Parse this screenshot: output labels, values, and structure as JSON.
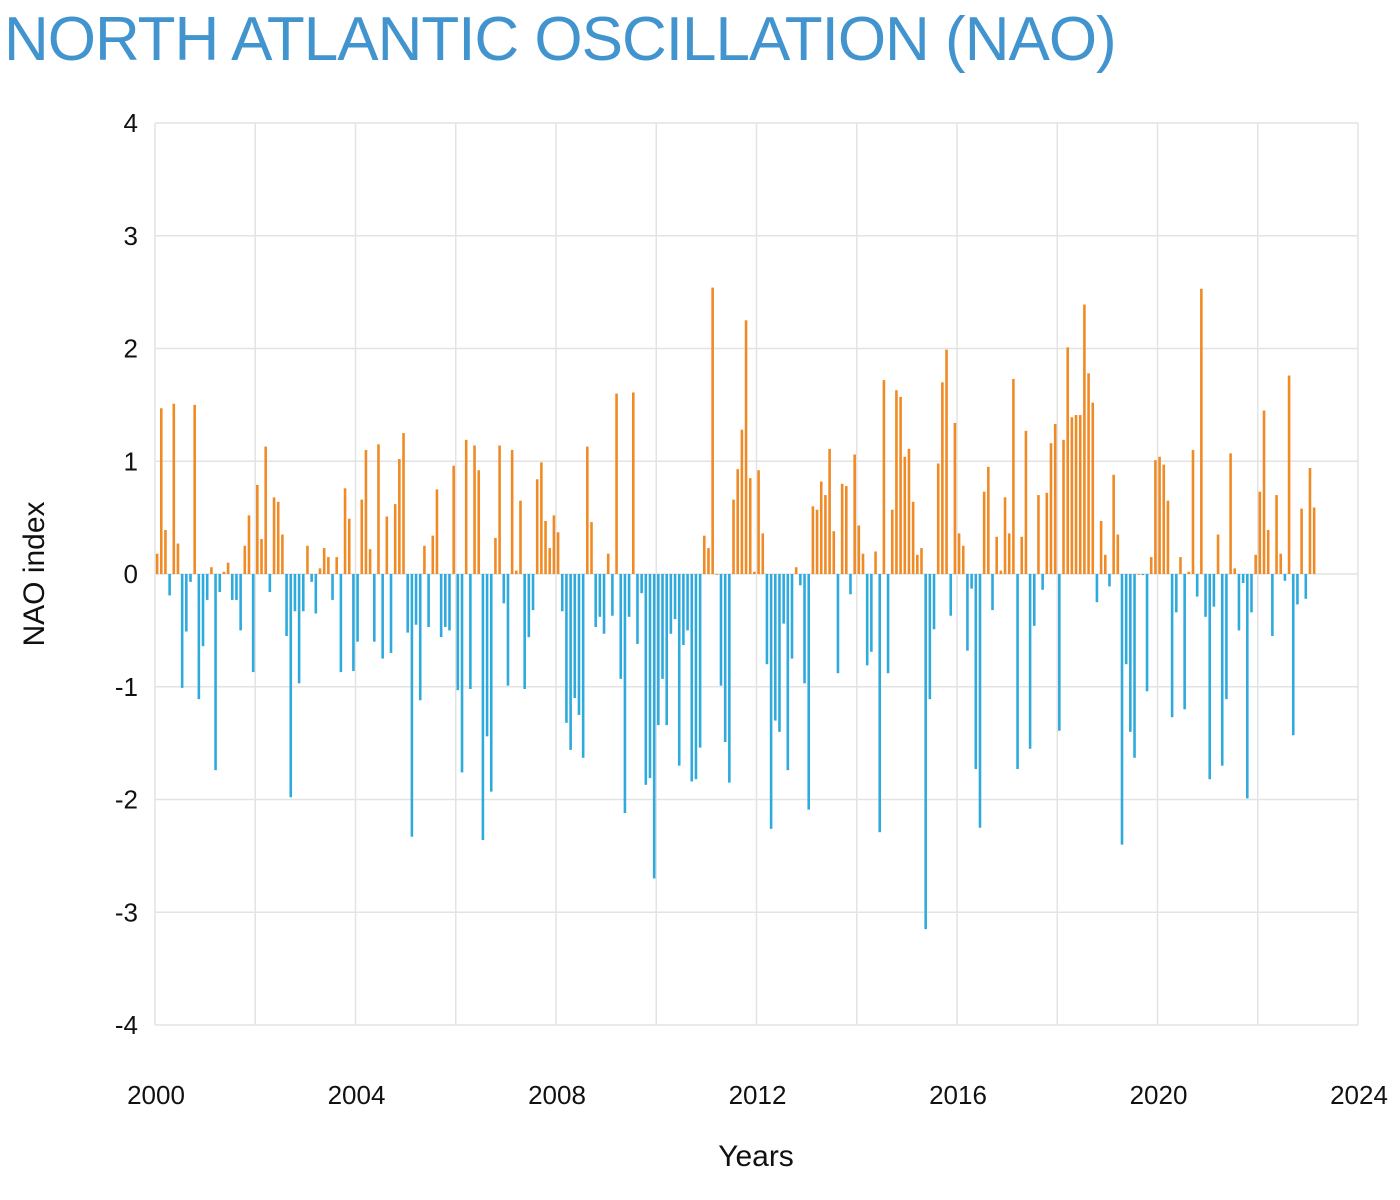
{
  "chart_data": {
    "type": "bar",
    "title": "NORTH ATLANTIC OSCILLATION (NAO)",
    "xlabel": "Years",
    "ylabel": "NAO index",
    "ylim": [
      -4,
      4
    ],
    "xlim": [
      2000,
      2024
    ],
    "yticks": [
      "4",
      "3",
      "2",
      "1",
      "0",
      "-1",
      "-2",
      "-3",
      "-4"
    ],
    "xticks": [
      "2000",
      "2004",
      "2008",
      "2012",
      "2016",
      "2020",
      "2024"
    ],
    "grid": true,
    "legend": "none",
    "frequency": "monthly",
    "start": "2000-01",
    "colors": {
      "positive": "#f08a24",
      "negative": "#2eaadc",
      "title": "#4294cf",
      "grid": "#e3e3e3"
    },
    "series": [
      {
        "name": "NAO index",
        "values": [
          0.18,
          1.47,
          0.39,
          -0.19,
          1.51,
          0.27,
          -1.01,
          -0.51,
          -0.07,
          1.5,
          -1.11,
          -0.64,
          -0.23,
          0.06,
          -1.74,
          -0.16,
          0.02,
          0.1,
          -0.23,
          -0.23,
          -0.5,
          0.25,
          0.52,
          -0.87,
          0.79,
          0.31,
          1.13,
          -0.16,
          0.68,
          0.64,
          0.35,
          -0.55,
          -1.98,
          -0.33,
          -0.97,
          -0.33,
          0.25,
          -0.07,
          -0.35,
          0.05,
          0.23,
          0.15,
          -0.23,
          0.15,
          -0.87,
          0.76,
          0.49,
          -0.86,
          -0.6,
          0.66,
          1.1,
          0.22,
          -0.6,
          1.15,
          -0.75,
          0.51,
          -0.7,
          0.62,
          1.02,
          1.25,
          -0.52,
          -2.33,
          -0.45,
          -1.12,
          0.25,
          -0.47,
          0.34,
          0.75,
          -0.56,
          -0.47,
          -0.5,
          0.96,
          -1.03,
          -1.76,
          1.19,
          -1.02,
          1.14,
          0.92,
          -2.36,
          -1.44,
          -1.93,
          0.32,
          1.14,
          -0.26,
          -0.99,
          1.1,
          0.03,
          0.65,
          -1.02,
          -0.56,
          -0.32,
          0.84,
          0.99,
          0.47,
          0.23,
          0.52,
          0.37,
          -0.33,
          -1.32,
          -1.56,
          -1.1,
          -1.25,
          -1.63,
          1.13,
          0.46,
          -0.47,
          -0.38,
          -0.53,
          0.18,
          -0.37,
          1.6,
          -0.93,
          -2.12,
          -0.38,
          1.61,
          -0.62,
          -0.17,
          -1.87,
          -1.81,
          -2.7,
          -1.34,
          -0.93,
          -1.34,
          -0.53,
          -0.4,
          -1.7,
          -0.63,
          -0.5,
          -1.84,
          -1.82,
          -1.54,
          0.34,
          0.23,
          2.54,
          0.0,
          -0.99,
          -1.49,
          -1.85,
          0.66,
          0.93,
          1.28,
          2.25,
          0.85,
          0.02,
          0.92,
          0.36,
          -0.8,
          -2.26,
          -1.3,
          -1.4,
          -0.44,
          -1.74,
          -0.75,
          0.06,
          -0.1,
          -0.97,
          -2.09,
          0.6,
          0.57,
          0.82,
          0.7,
          1.11,
          0.38,
          -0.88,
          0.8,
          0.78,
          -0.18,
          1.06,
          0.43,
          0.18,
          -0.81,
          -0.69,
          0.2,
          -2.29,
          1.72,
          -0.88,
          0.57,
          1.63,
          1.57,
          1.04,
          1.11,
          0.64,
          0.17,
          0.23,
          -3.15,
          -1.11,
          -0.49,
          0.98,
          1.7,
          1.99,
          -0.37,
          1.34,
          0.36,
          0.25,
          -0.68,
          -0.13,
          -1.73,
          -2.25,
          0.73,
          0.95,
          -0.32,
          0.33,
          0.03,
          0.68,
          0.36,
          1.73,
          -1.73,
          0.33,
          1.27,
          -1.55,
          -0.46,
          0.7,
          -0.14,
          0.72,
          1.16,
          1.33,
          -1.39,
          1.19,
          2.01,
          1.39,
          1.41,
          1.41,
          2.39,
          1.78,
          1.52,
          -0.25,
          0.47,
          0.17,
          -0.11,
          0.88,
          0.35,
          -2.4,
          -0.8,
          -1.4,
          -1.63,
          0.0,
          -0.01,
          -1.04,
          0.15,
          1.01,
          1.04,
          0.97,
          0.65,
          -1.27,
          -0.34,
          0.15,
          -1.2,
          0.02,
          1.1,
          -0.2,
          2.53,
          -0.38,
          -1.82,
          -0.29,
          0.35,
          -1.7,
          -1.11,
          1.07,
          0.05,
          -0.5,
          -0.08,
          -1.99,
          -0.34,
          0.17,
          0.73,
          1.45,
          0.39,
          -0.55,
          0.7,
          0.18,
          -0.06,
          1.76,
          -1.43,
          -0.27,
          0.58,
          -0.22,
          0.94,
          0.59
        ]
      }
    ]
  }
}
